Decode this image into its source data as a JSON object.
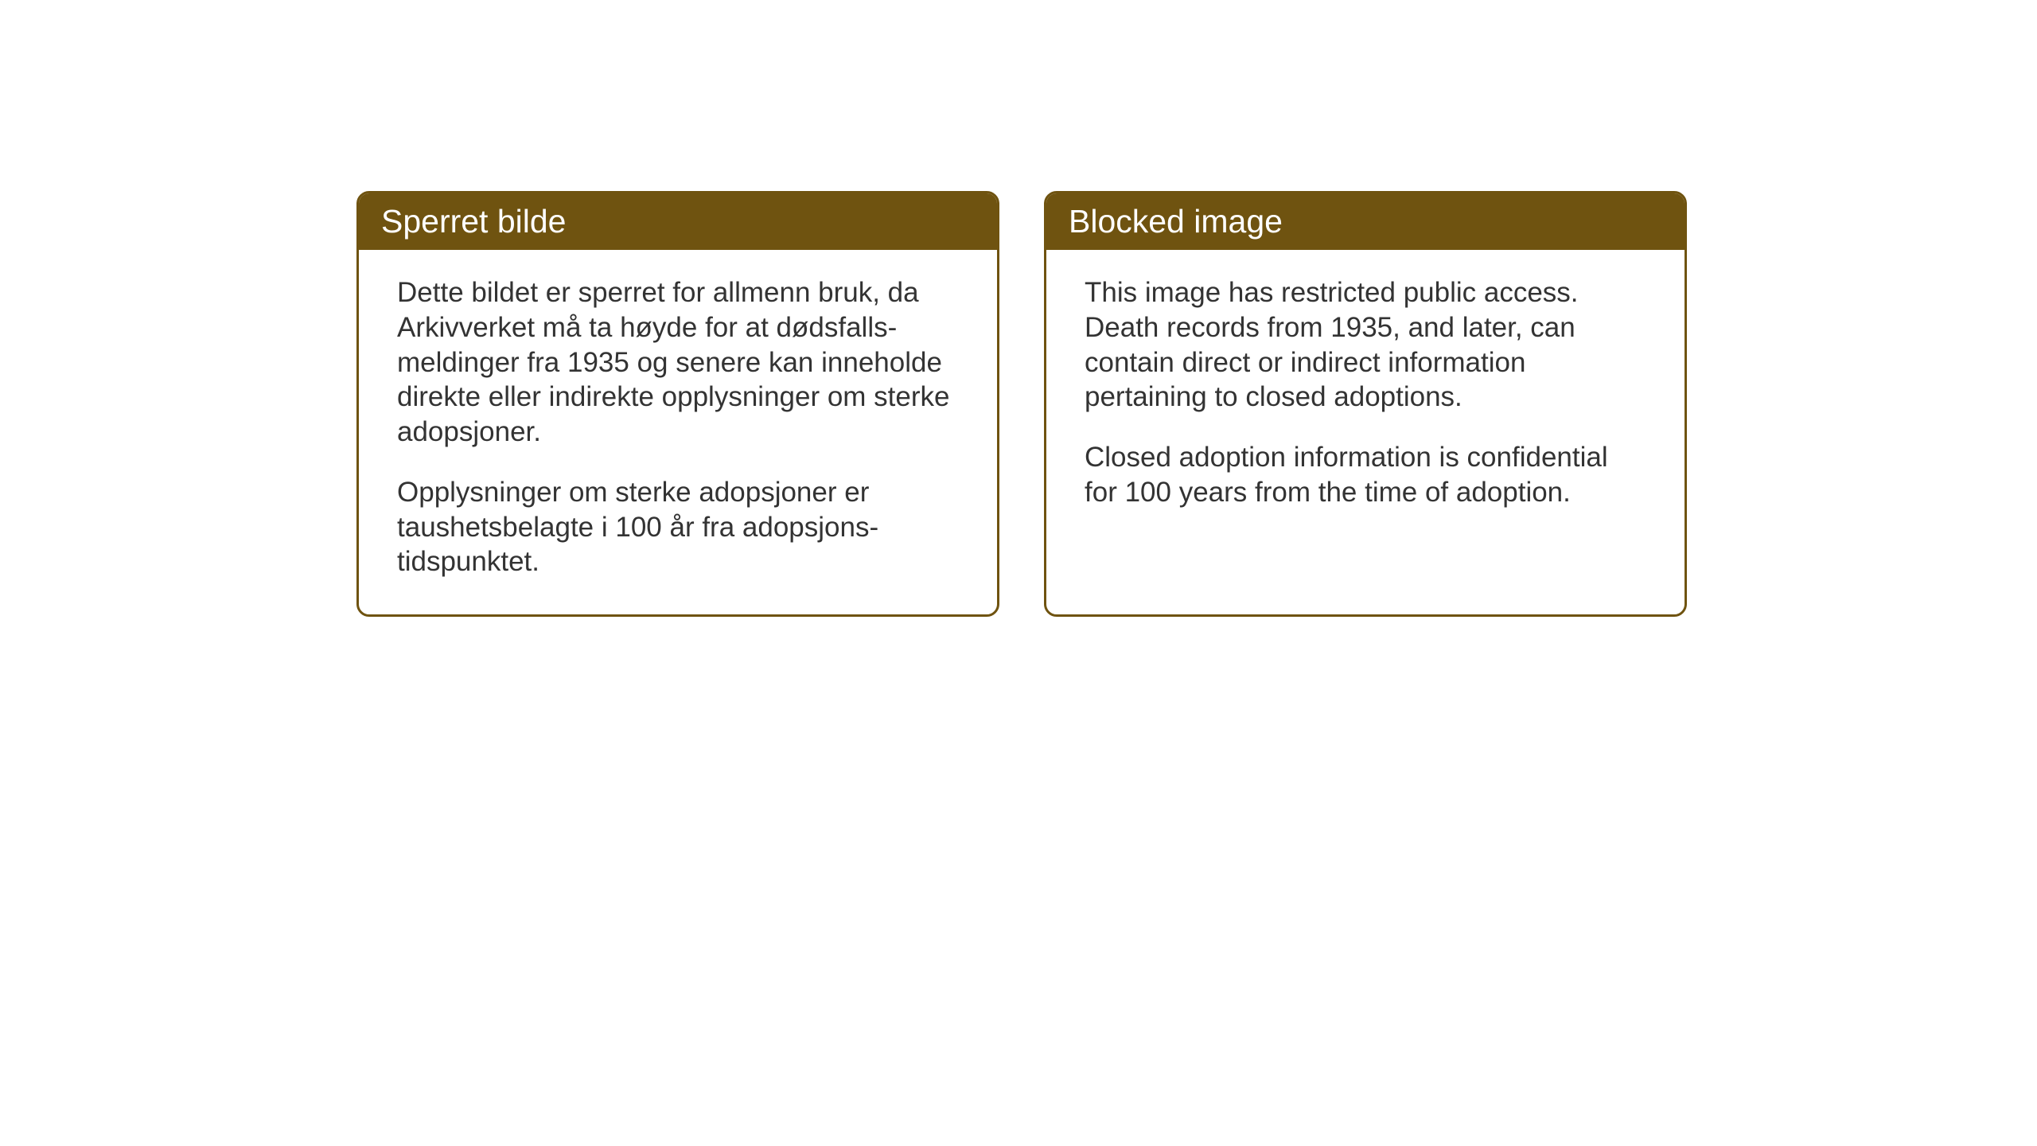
{
  "layout": {
    "background_color": "#ffffff",
    "card_border_color": "#6f5310",
    "card_header_bg": "#6f5310",
    "card_header_color": "#ffffff",
    "card_body_color": "#333333",
    "header_fontsize": 41,
    "body_fontsize": 35,
    "border_radius": 16,
    "border_width": 3
  },
  "cards": [
    {
      "title": "Sperret bilde",
      "paragraph1": "Dette bildet er sperret for allmenn bruk, da Arkivverket må ta høyde for at dødsfalls-meldinger fra 1935 og senere kan inneholde direkte eller indirekte opplysninger om sterke adopsjoner.",
      "paragraph2": "Opplysninger om sterke adopsjoner er taushetsbelagte i 100 år fra adopsjons-tidspunktet."
    },
    {
      "title": "Blocked image",
      "paragraph1": "This image has restricted public access. Death records from 1935, and later, can contain direct or indirect information pertaining to closed adoptions.",
      "paragraph2": "Closed adoption information is confidential for 100 years from the time of adoption."
    }
  ]
}
